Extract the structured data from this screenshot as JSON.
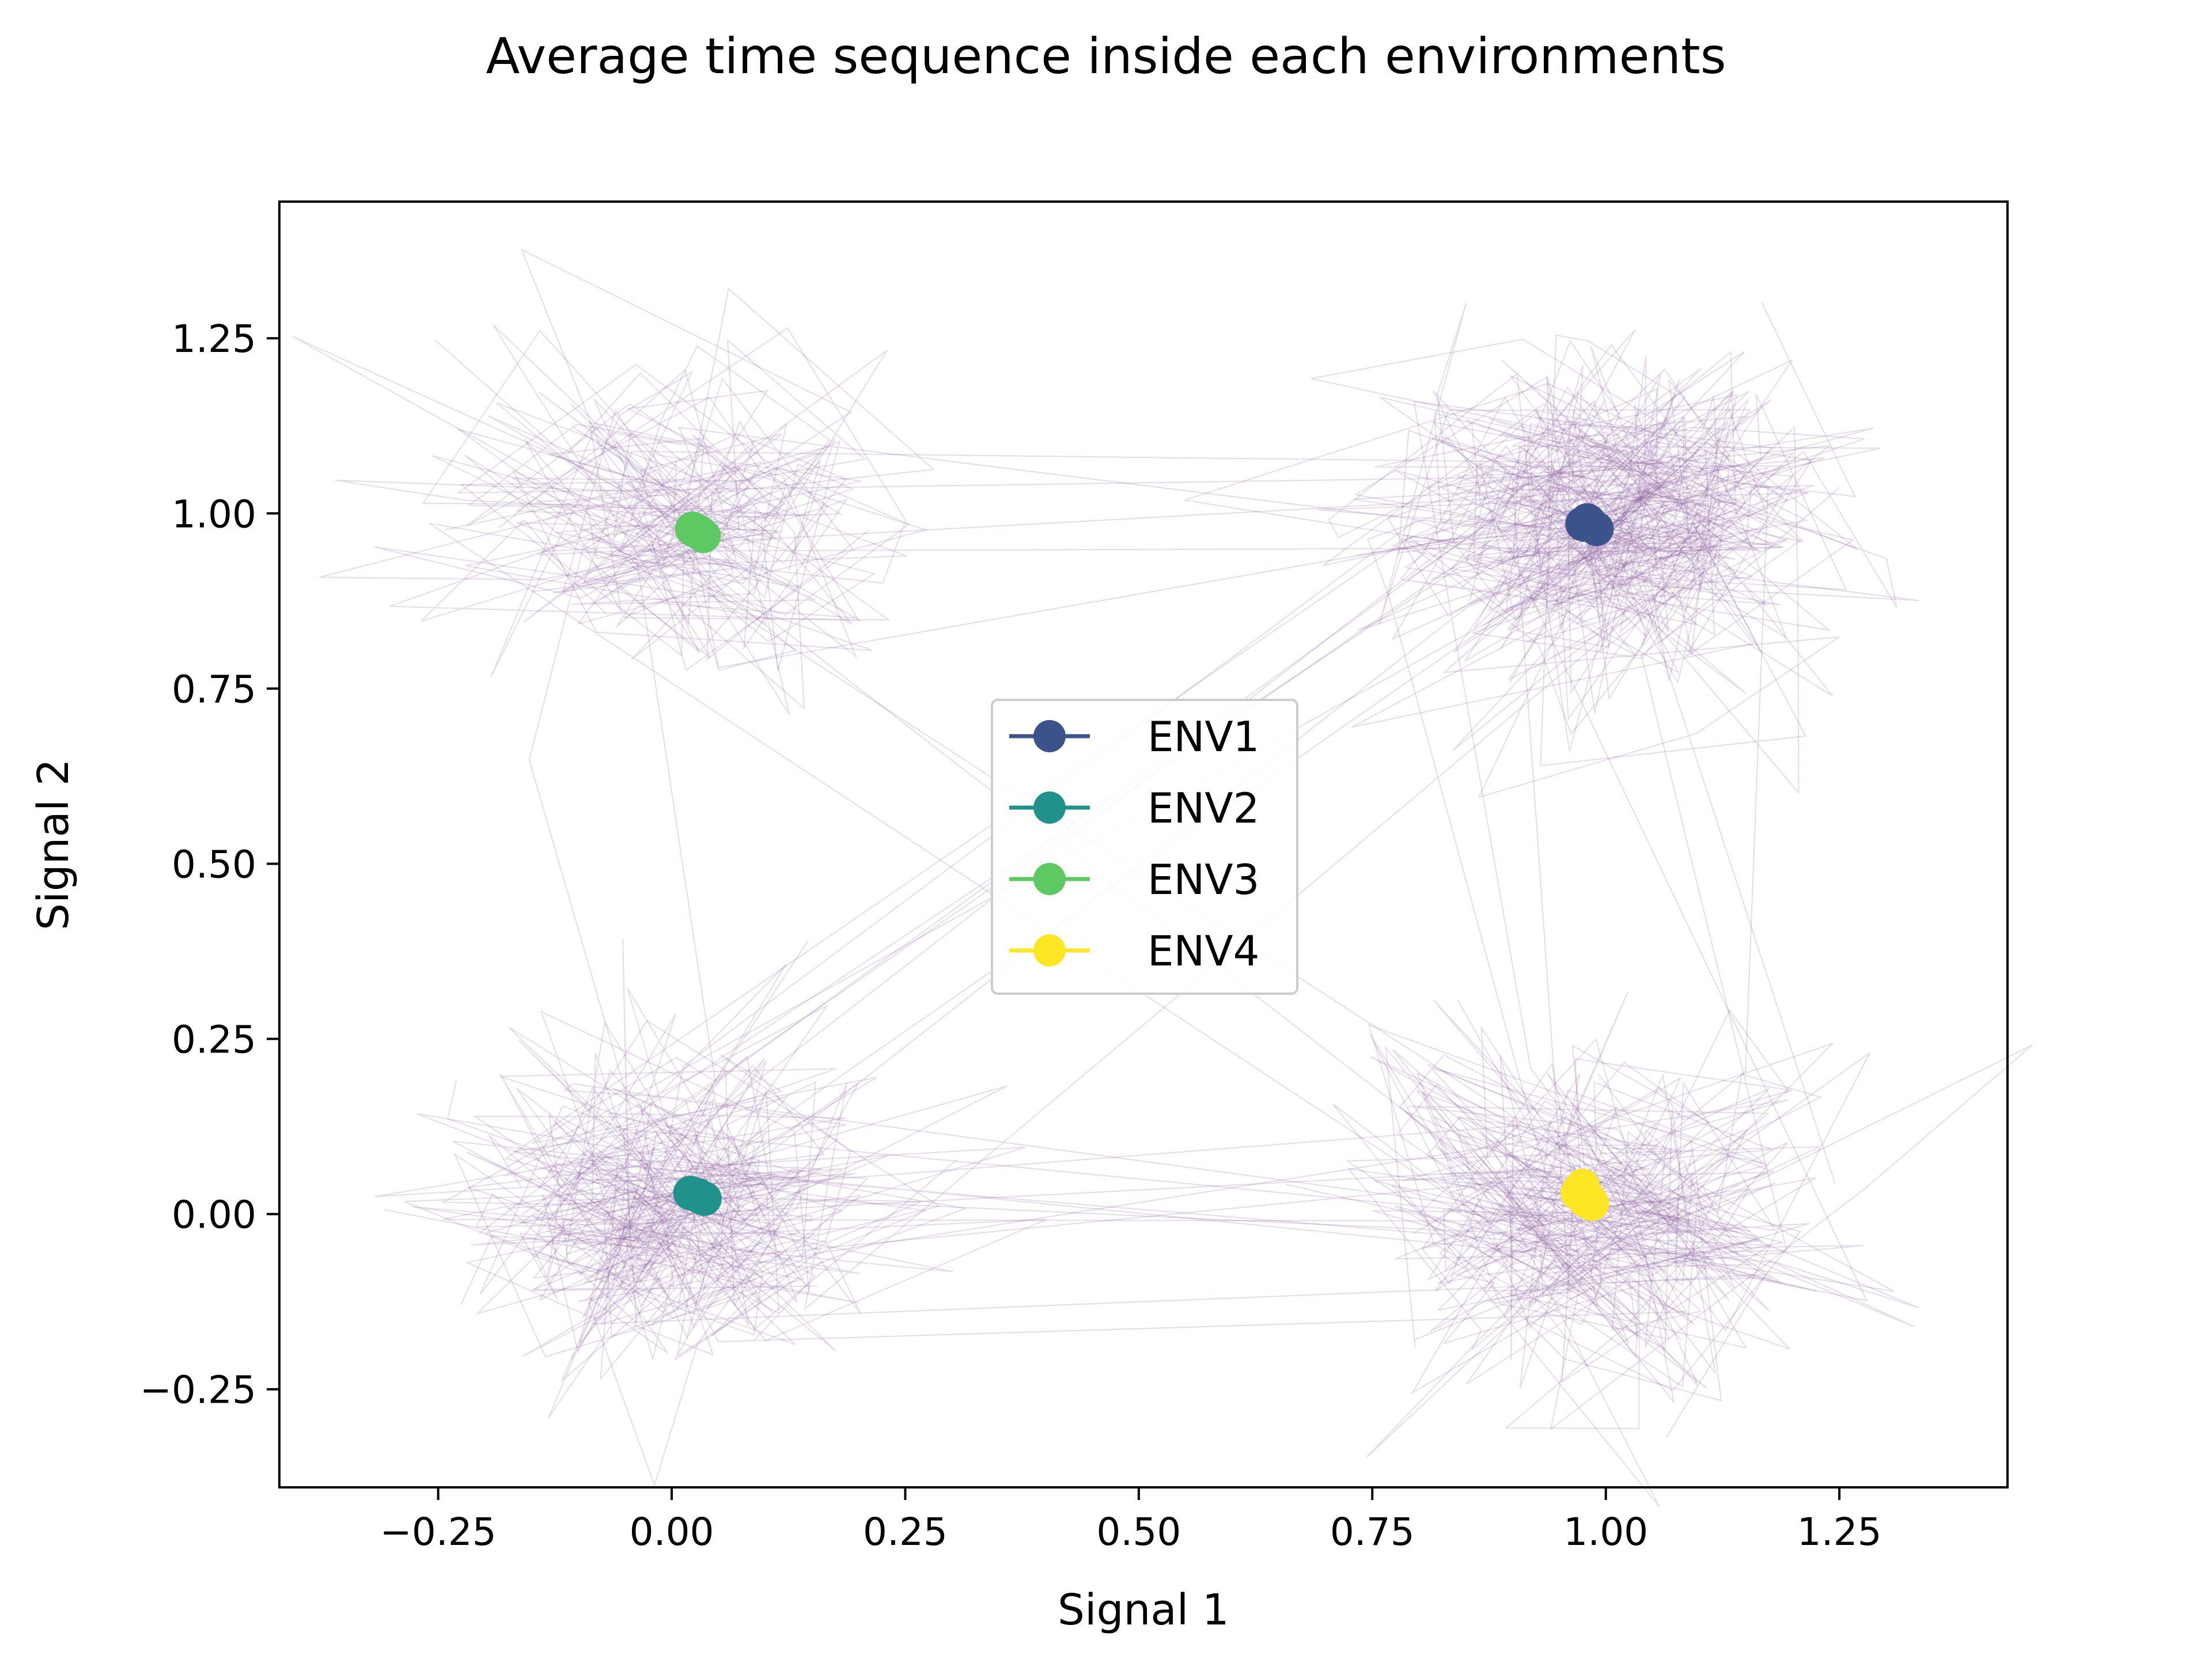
{
  "chart_data": {
    "type": "line",
    "title": "Average time sequence inside each environments",
    "xlabel": "Signal 1",
    "ylabel": "Signal 2",
    "xlim": [
      -0.42,
      1.43
    ],
    "ylim": [
      -0.39,
      1.445
    ],
    "xticks": [
      -0.25,
      0.0,
      0.25,
      0.5,
      0.75,
      1.0,
      1.25
    ],
    "xtick_labels": [
      "−0.25",
      "0.00",
      "0.25",
      "0.50",
      "0.75",
      "1.00",
      "1.25"
    ],
    "yticks": [
      -0.25,
      0.0,
      0.25,
      0.5,
      0.75,
      1.0,
      1.25
    ],
    "ytick_labels": [
      "−0.25",
      "0.00",
      "0.25",
      "0.50",
      "0.75",
      "1.00",
      "1.25"
    ],
    "grid": false,
    "legend_position": "center",
    "background_trace_color": "#8a5a9a",
    "series": [
      {
        "name": "ENV1",
        "color": "#3b528b",
        "x": [
          0.975,
          0.98,
          0.985,
          0.99,
          0.982,
          0.978
        ],
        "y": [
          0.985,
          0.99,
          0.982,
          0.978,
          0.988,
          0.984
        ]
      },
      {
        "name": "ENV2",
        "color": "#21918c",
        "x": [
          0.02,
          0.025,
          0.03,
          0.035,
          0.028
        ],
        "y": [
          0.03,
          0.028,
          0.025,
          0.022,
          0.027
        ]
      },
      {
        "name": "ENV3",
        "color": "#5ec962",
        "x": [
          0.022,
          0.026,
          0.03,
          0.034,
          0.028
        ],
        "y": [
          0.978,
          0.975,
          0.972,
          0.968,
          0.974
        ]
      },
      {
        "name": "ENV4",
        "color": "#fde725",
        "x": [
          0.97,
          0.975,
          0.98,
          0.985,
          0.978,
          0.972
        ],
        "y": [
          0.03,
          0.04,
          0.025,
          0.015,
          0.02,
          0.035
        ]
      }
    ]
  }
}
